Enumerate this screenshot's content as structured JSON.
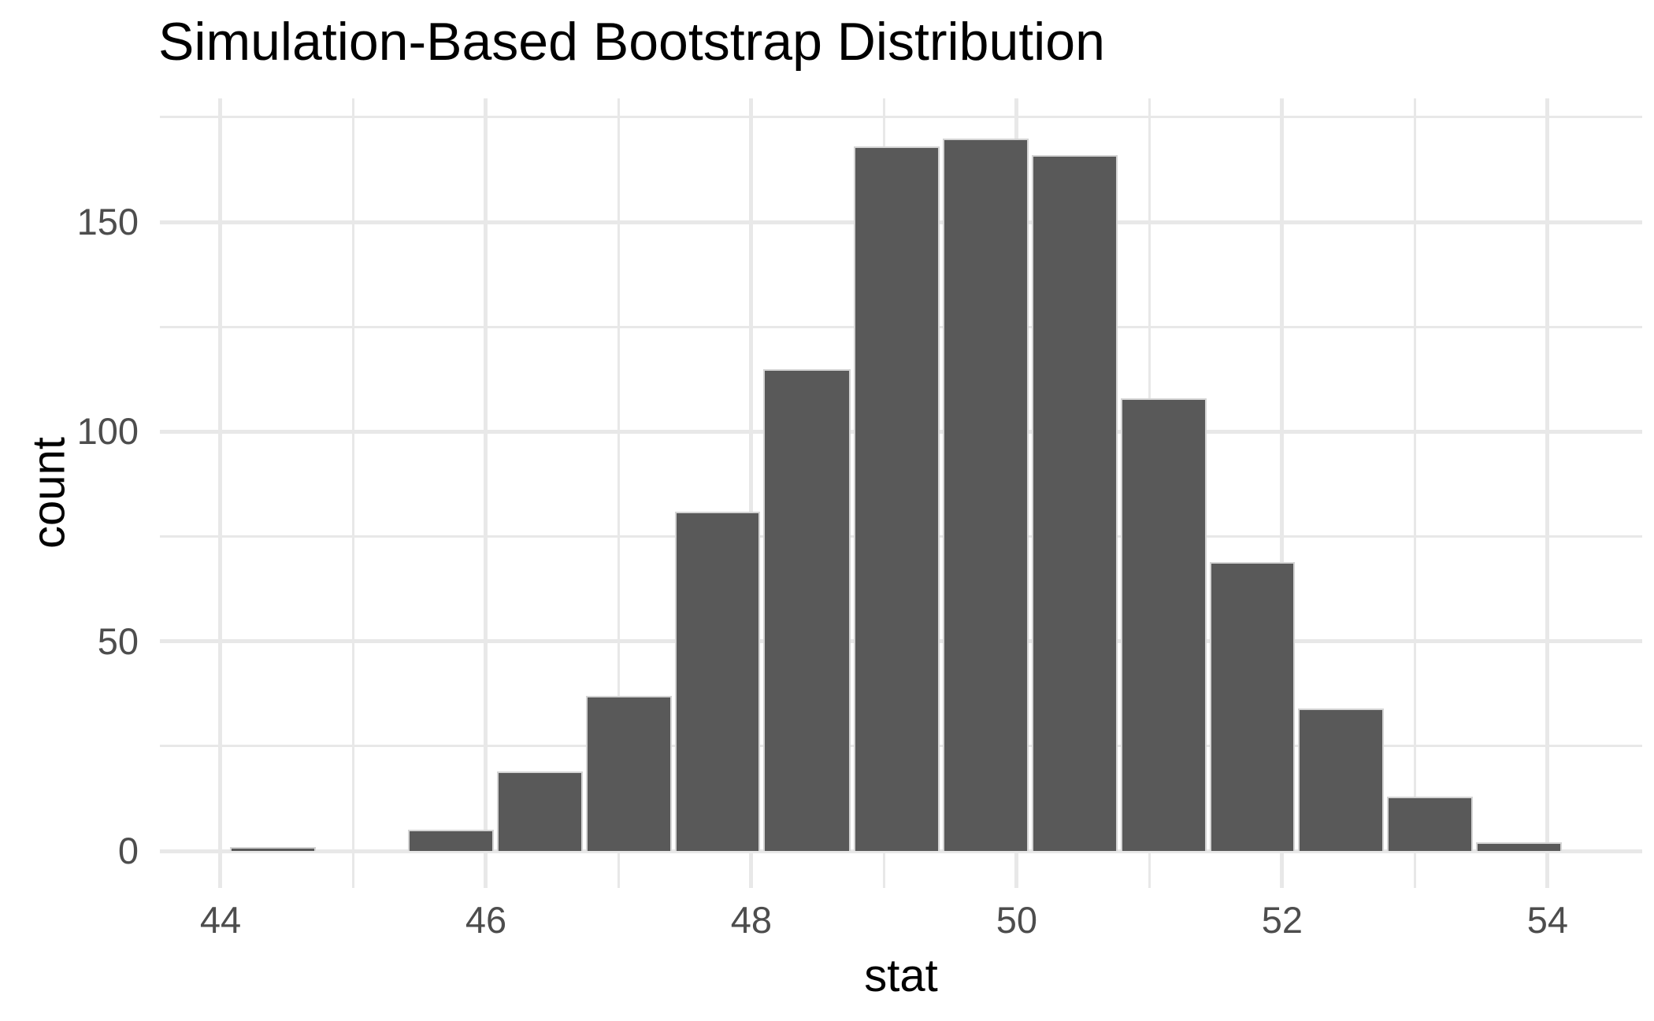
{
  "title": "Simulation-Based Bootstrap Distribution",
  "x_axis": {
    "label": "stat",
    "tick_labels": [
      "44",
      "46",
      "48",
      "50",
      "52",
      "54"
    ],
    "tick_values": [
      44,
      46,
      48,
      50,
      52,
      54
    ],
    "minor_values": [
      45,
      47,
      49,
      51,
      53
    ]
  },
  "y_axis": {
    "label": "count",
    "tick_labels": [
      "0",
      "50",
      "100",
      "150"
    ],
    "tick_values": [
      0,
      50,
      100,
      150
    ],
    "minor_values": [
      25,
      75,
      125,
      175
    ]
  },
  "chart_data": {
    "type": "bar",
    "subtype": "histogram",
    "title": "Simulation-Based Bootstrap Distribution",
    "xlabel": "stat",
    "ylabel": "count",
    "bin_start": 44.06,
    "bin_width": 0.671,
    "bin_edges": [
      44.06,
      44.73,
      45.4,
      46.07,
      46.74,
      47.41,
      48.08,
      48.76,
      49.43,
      50.1,
      50.77,
      51.44,
      52.11,
      52.78,
      53.45,
      54.12
    ],
    "counts": [
      1,
      0,
      5,
      19,
      37,
      81,
      115,
      168,
      170,
      166,
      108,
      69,
      34,
      13,
      2
    ],
    "xlim": [
      43.543,
      54.713
    ],
    "ylim": [
      -8.82,
      179.5
    ],
    "grid": "on",
    "legend": "none",
    "bar_fill": "#595959",
    "bar_border": "#d4d4d4",
    "grid_color": "#e8e8e8",
    "tick_label_color": "#4d4d4d",
    "title_color": "#000000",
    "axis_title_color": "#000000",
    "background_color": "#ffffff"
  }
}
